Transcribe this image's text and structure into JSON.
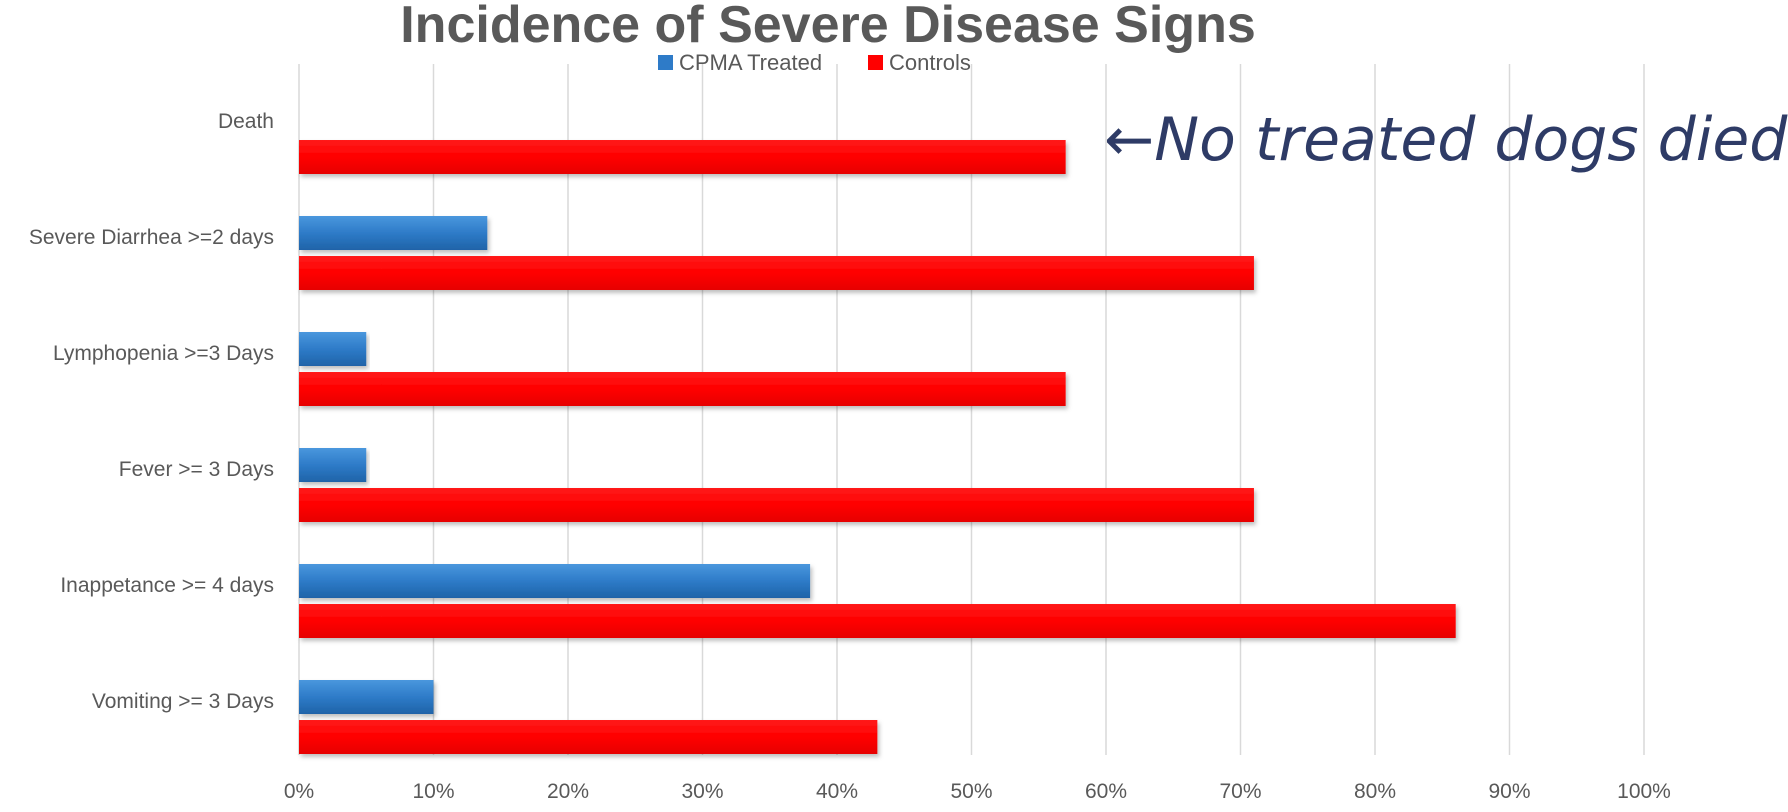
{
  "chart_data": {
    "type": "bar",
    "orientation": "horizontal",
    "title": "Incidence of Severe Disease Signs",
    "categories": [
      "Death",
      "Severe Diarrhea >=2 days",
      "Lymphopenia >=3 Days",
      "Fever >= 3 Days",
      "Inappetance >= 4 days",
      "Vomiting >= 3 Days"
    ],
    "series": [
      {
        "name": "CPMA Treated",
        "color": "#2e7bc8",
        "values": [
          0,
          14,
          5,
          5,
          38,
          10
        ]
      },
      {
        "name": "Controls",
        "color": "#ff0000",
        "values": [
          57,
          71,
          57,
          71,
          86,
          43
        ]
      }
    ],
    "xlim": [
      0,
      100
    ],
    "xticks": [
      0,
      10,
      20,
      30,
      40,
      50,
      60,
      70,
      80,
      90,
      100
    ],
    "xtick_labels": [
      "0%",
      "10%",
      "20%",
      "30%",
      "40%",
      "50%",
      "60%",
      "70%",
      "80%",
      "90%",
      "100%"
    ],
    "grid": true,
    "legend_position": "top-center",
    "annotation": "←No treated dogs died!"
  }
}
